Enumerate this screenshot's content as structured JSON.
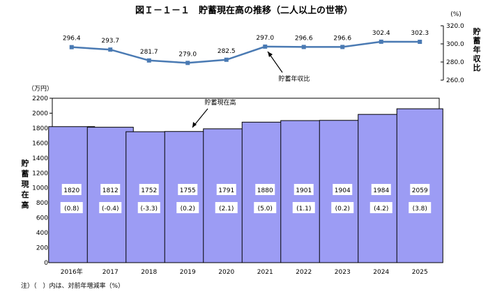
{
  "title": "図Ｉ－１－１　貯蓄現在高の推移（二人以上の世帯）",
  "note": "注）（　）内は、対前年増減率（%）",
  "chart_data": [
    {
      "type": "line",
      "name": "ratio",
      "series_label": "貯蓄年収比",
      "x": [
        "2016年",
        "2017",
        "2018",
        "2019",
        "2020",
        "2021",
        "2022",
        "2023",
        "2024",
        "2025"
      ],
      "values": [
        296.4,
        293.7,
        281.7,
        279.0,
        282.5,
        297.0,
        296.6,
        296.6,
        302.4,
        302.3
      ],
      "unit": "(%)",
      "ylabel": "貯蓄年収比",
      "ylim": [
        260,
        320
      ],
      "yticks": [
        "260.0",
        "280.0",
        "300.0",
        "320.0"
      ],
      "color": "#4a7ab3"
    },
    {
      "type": "bar",
      "name": "savings",
      "series_label": "貯蓄現在高",
      "categories": [
        "2016年",
        "2017",
        "2018",
        "2019",
        "2020",
        "2021",
        "2022",
        "2023",
        "2024",
        "2025"
      ],
      "values": [
        1820,
        1812,
        1752,
        1755,
        1791,
        1880,
        1901,
        1904,
        1984,
        2059
      ],
      "changes": [
        "(0.8)",
        "(-0.4)",
        "(-3.3)",
        "(0.2)",
        "(2.1)",
        "(5.0)",
        "(1.1)",
        "(0.2)",
        "(4.2)",
        "(3.8)"
      ],
      "unit": "（万円）",
      "ylabel": "貯蓄現在高",
      "ylim": [
        0,
        2200
      ],
      "yticks": [
        "0",
        "200",
        "400",
        "600",
        "800",
        "1000",
        "1200",
        "1400",
        "1600",
        "1800",
        "2000",
        "2200"
      ],
      "grid": false,
      "color": "#9c9cf4"
    }
  ]
}
